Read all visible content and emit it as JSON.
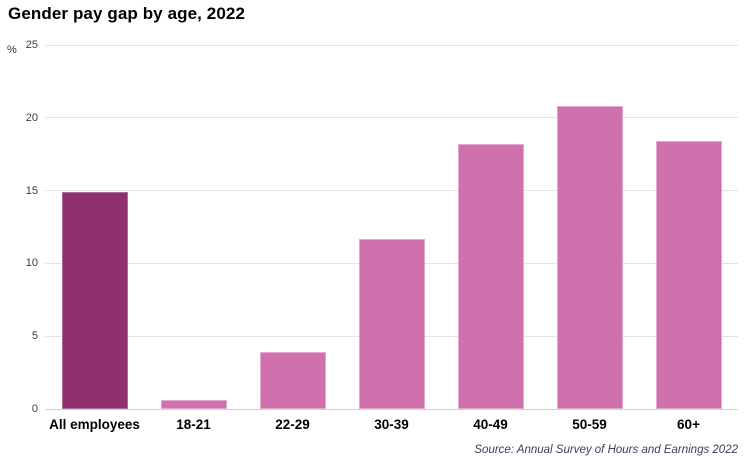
{
  "header": {
    "title": "Gender pay gap by age, 2022"
  },
  "y_axis": {
    "unit_label": "%"
  },
  "chart_data": {
    "type": "bar",
    "title": "Gender pay gap by age, 2022",
    "categories": [
      "All employees",
      "18-21",
      "22-29",
      "30-39",
      "40-49",
      "50-59",
      "60+"
    ],
    "values": [
      14.9,
      0.6,
      3.9,
      11.7,
      18.2,
      20.8,
      18.4
    ],
    "ylabel": "%",
    "yticks": [
      0,
      5,
      10,
      15,
      20,
      25
    ],
    "ylim": [
      0,
      25
    ],
    "grid": "horizontal",
    "legend": "none",
    "highlight_category": "All employees",
    "colors": {
      "highlight_bar": "#8e2f6e",
      "highlight_bar_border": "#b06a97",
      "bar": "#d071ae",
      "bar_border": "#e3a8cd"
    }
  },
  "footer": {
    "source": "Source: Annual Survey of Hours and Earnings 2022"
  }
}
